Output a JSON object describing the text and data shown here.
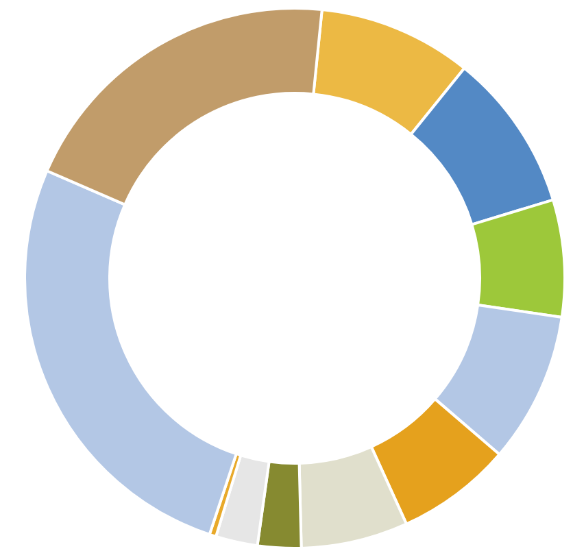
{
  "chart_data": {
    "type": "donut",
    "categories": [
      null,
      null,
      null,
      null,
      null,
      null,
      null,
      null,
      null,
      null,
      null
    ],
    "values": [
      9.2,
      9.5,
      7.0,
      9.0,
      6.9,
      6.4,
      2.6,
      2.5,
      0.4,
      26.4,
      20.1
    ],
    "colors": [
      "#ecb944",
      "#5389c5",
      "#9dc83a",
      "#b3c7e5",
      "#e5a11d",
      "#e0dfcc",
      "#868a30",
      "#e6e6e6",
      "#e8a92a",
      "#b3c7e5",
      "#c19c6a"
    ]
  }
}
